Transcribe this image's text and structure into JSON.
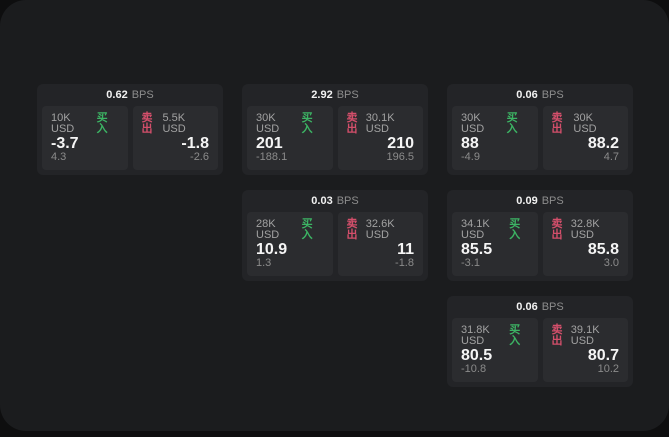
{
  "labels": {
    "bps": "BPS",
    "buy": "买入",
    "sell": "卖出"
  },
  "colors": {
    "buy_green": "#3cb464",
    "sell_red": "#d44f6b",
    "page_background": "#1b1c1e",
    "card_background": "#232427",
    "panel_background": "#2b2c2f"
  },
  "cards": [
    {
      "bps": "0.62",
      "buy": {
        "size": "10K USD",
        "value": "-3.7",
        "delta": "4.3"
      },
      "sell": {
        "size": "5.5K USD",
        "value": "-1.8",
        "delta": "-2.6"
      }
    },
    {
      "bps": "2.92",
      "buy": {
        "size": "30K USD",
        "value": "201",
        "delta": "-188.1"
      },
      "sell": {
        "size": "30.1K USD",
        "value": "210",
        "delta": "196.5"
      }
    },
    {
      "bps": "0.06",
      "buy": {
        "size": "30K USD",
        "value": "88",
        "delta": "-4.9"
      },
      "sell": {
        "size": "30K USD",
        "value": "88.2",
        "delta": "4.7"
      }
    },
    {
      "bps": "0.03",
      "buy": {
        "size": "28K USD",
        "value": "10.9",
        "delta": "1.3"
      },
      "sell": {
        "size": "32.6K USD",
        "value": "11",
        "delta": "-1.8"
      }
    },
    {
      "bps": "0.09",
      "buy": {
        "size": "34.1K USD",
        "value": "85.5",
        "delta": "-3.1"
      },
      "sell": {
        "size": "32.8K USD",
        "value": "85.8",
        "delta": "3.0"
      }
    },
    {
      "bps": "0.06",
      "buy": {
        "size": "31.8K USD",
        "value": "80.5",
        "delta": "-10.8"
      },
      "sell": {
        "size": "39.1K USD",
        "value": "80.7",
        "delta": "10.2"
      }
    }
  ]
}
